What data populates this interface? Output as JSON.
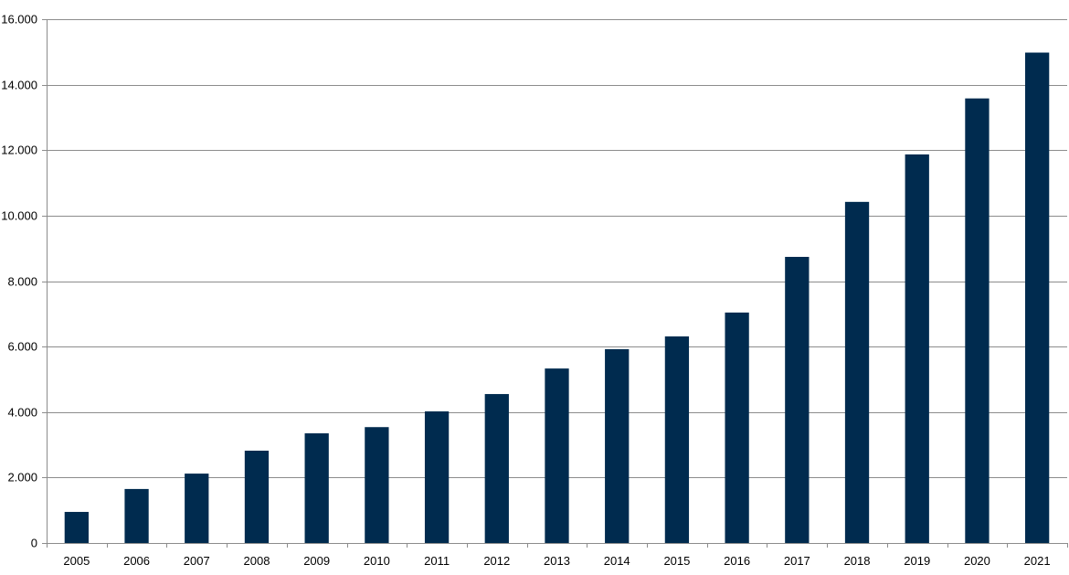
{
  "chart_data": {
    "type": "bar",
    "title": "",
    "xlabel": "",
    "ylabel": "",
    "categories": [
      "2005",
      "2006",
      "2007",
      "2008",
      "2009",
      "2010",
      "2011",
      "2012",
      "2013",
      "2014",
      "2015",
      "2016",
      "2017",
      "2018",
      "2019",
      "2020",
      "2021"
    ],
    "values": [
      950,
      1650,
      2120,
      2820,
      3350,
      3540,
      4020,
      4550,
      5330,
      5920,
      6310,
      7040,
      8740,
      10420,
      11870,
      13580,
      14980
    ],
    "ylim": [
      0,
      16000
    ],
    "yticks": [
      0,
      2000,
      4000,
      6000,
      8000,
      10000,
      12000,
      14000,
      16000
    ],
    "ytick_labels": [
      "0",
      "2.000",
      "4.000",
      "6.000",
      "8.000",
      "10.000",
      "12.000",
      "14.000",
      "16.000"
    ],
    "grid": true,
    "legend": "none",
    "colors": {
      "bar": "#002b4f",
      "grid": "#8c8c8c",
      "axis": "#8c8c8c"
    }
  }
}
